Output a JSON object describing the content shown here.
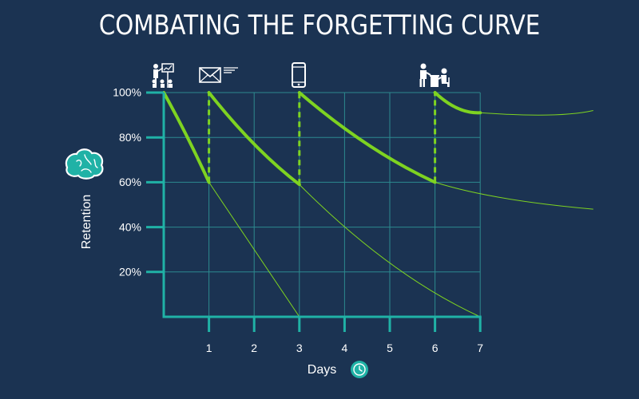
{
  "title": "COMBATING THE FORGETTING CURVE",
  "colors": {
    "background": "#1b3352",
    "axis": "#20b2a6",
    "grid": "#2d8a8f",
    "curve": "#7ed321",
    "text": "#ffffff",
    "icon_accent": "#20b2a6"
  },
  "icons": {
    "review_1": "presentation-icon",
    "review_2": "email-icon",
    "review_3": "smartphone-icon",
    "review_4": "meeting-icon",
    "y_axis": "brain-icon",
    "x_axis": "clock-icon"
  },
  "chart_data": {
    "type": "line",
    "title": "COMBATING THE FORGETTING CURVE",
    "xlabel": "Days",
    "ylabel": "Retention",
    "xlim": [
      0,
      7
    ],
    "ylim": [
      0,
      100
    ],
    "x_ticks": [
      1,
      2,
      3,
      4,
      5,
      6,
      7
    ],
    "y_ticks": [
      20,
      40,
      60,
      80,
      100
    ],
    "y_tick_labels": [
      "20%",
      "40%",
      "60%",
      "80%",
      "100%"
    ],
    "grid": true,
    "review_days": [
      0,
      1,
      3,
      6
    ],
    "retention_with_review": [
      {
        "x": [
          0,
          0.5,
          1
        ],
        "y": [
          100,
          81,
          60
        ]
      },
      {
        "x": [
          1,
          2,
          3
        ],
        "y": [
          100,
          77,
          59
        ]
      },
      {
        "x": [
          3,
          4.5,
          6
        ],
        "y": [
          100,
          77,
          60
        ]
      },
      {
        "x": [
          6,
          6.5,
          7
        ],
        "y": [
          100,
          93,
          91
        ]
      }
    ],
    "retention_without_review": [
      {
        "x": [
          1,
          2,
          3
        ],
        "y": [
          60,
          30,
          0
        ]
      },
      {
        "x": [
          3,
          5,
          7
        ],
        "y": [
          59,
          24,
          0
        ]
      },
      {
        "x": [
          6,
          7.5,
          9.5
        ],
        "y": [
          60,
          53,
          48
        ]
      },
      {
        "x": [
          7,
          8.5,
          9.5
        ],
        "y": [
          91,
          90,
          92
        ]
      }
    ],
    "review_jumps": [
      {
        "x": 1,
        "from": 60,
        "to": 100
      },
      {
        "x": 3,
        "from": 59,
        "to": 100
      },
      {
        "x": 6,
        "from": 60,
        "to": 100
      }
    ]
  }
}
